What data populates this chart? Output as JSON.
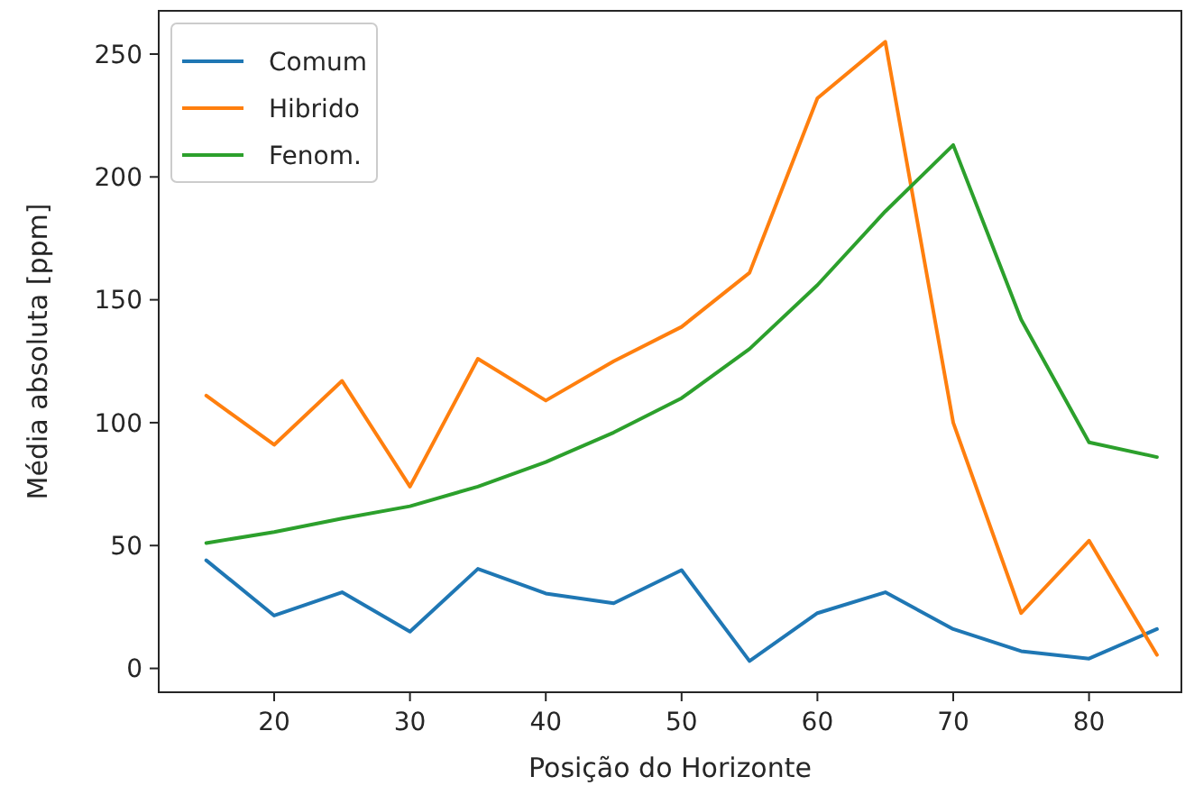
{
  "chart_data": {
    "type": "line",
    "xlabel": "Posição do Horizonte",
    "ylabel": "Média absoluta [ppm]",
    "x": [
      15,
      20,
      25,
      30,
      35,
      40,
      45,
      50,
      55,
      60,
      65,
      70,
      75,
      80,
      85
    ],
    "series": [
      {
        "name": "Comum",
        "color": "#1f77b4",
        "values": [
          44,
          21.5,
          31,
          15,
          40.5,
          30.5,
          26.5,
          40,
          3,
          22.5,
          31,
          16,
          7,
          4,
          16
        ]
      },
      {
        "name": "Hibrido",
        "color": "#ff7f0e",
        "values": [
          111,
          91,
          117,
          74,
          126,
          109,
          125,
          139,
          161,
          232,
          255,
          100,
          22.5,
          52,
          5.5
        ]
      },
      {
        "name": "Fenom.",
        "color": "#2ca02c",
        "values": [
          51,
          55.5,
          61,
          66,
          74,
          84,
          96,
          110,
          130,
          156,
          186,
          213,
          142,
          92,
          86
        ]
      }
    ],
    "xlim": [
      11.5,
      86.8
    ],
    "ylim": [
      -9.7,
      267.6
    ],
    "xticks": [
      20,
      30,
      40,
      50,
      60,
      70,
      80
    ],
    "yticks": [
      0,
      50,
      100,
      150,
      200,
      250
    ],
    "grid": false,
    "legend": "top left",
    "line_style": "solid",
    "marker": "none"
  }
}
